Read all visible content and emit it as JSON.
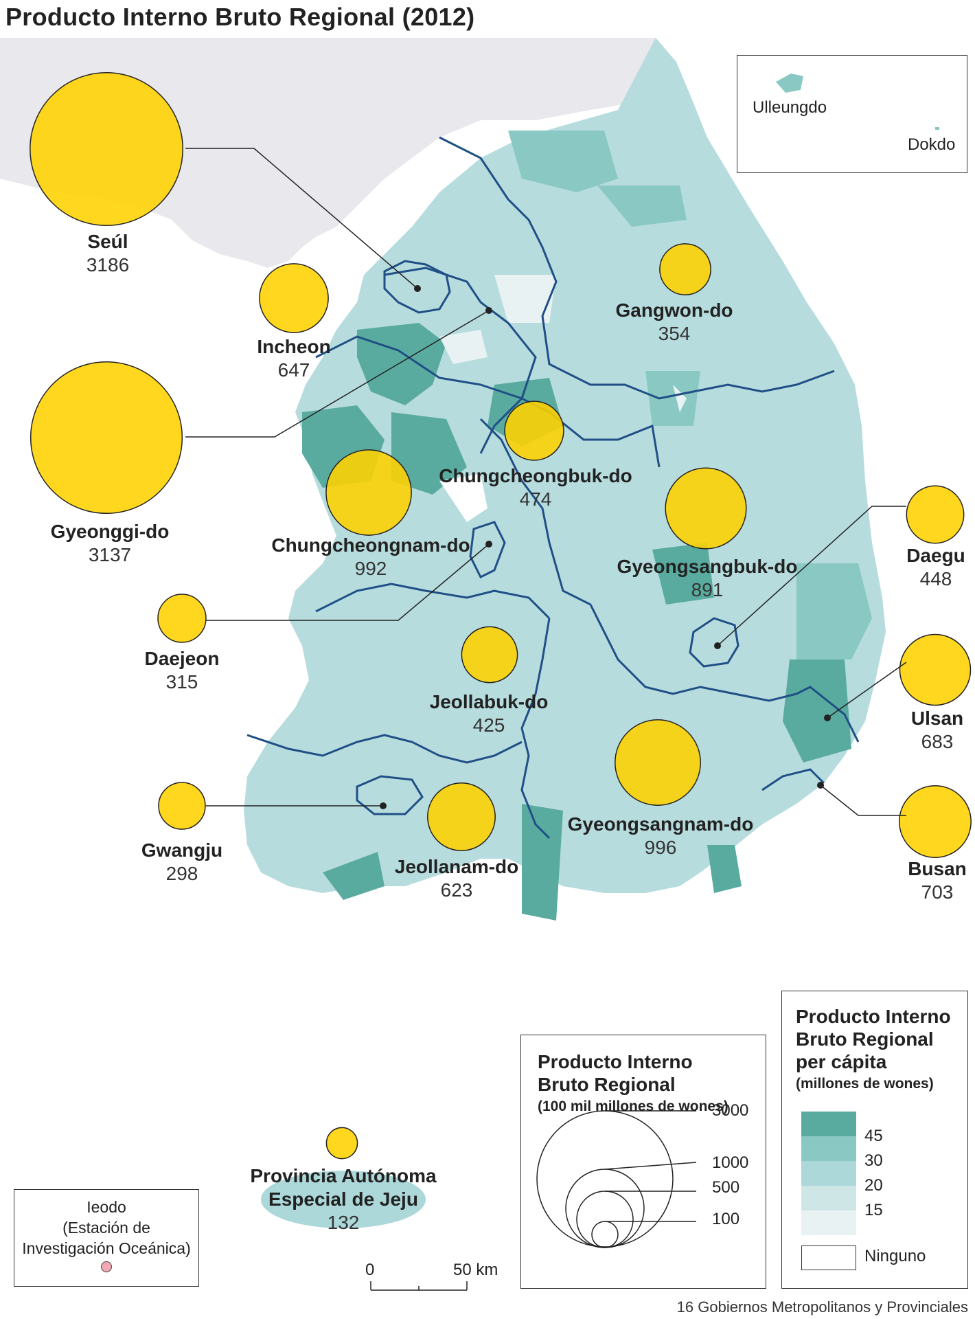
{
  "title": "Producto Interno Bruto Regional (2012)",
  "regions": {
    "seoul": {
      "name": "Seúl",
      "value": "3186"
    },
    "incheon": {
      "name": "Incheon",
      "value": "647"
    },
    "gyeonggi": {
      "name": "Gyeonggi-do",
      "value": "3137"
    },
    "gangwon": {
      "name": "Gangwon-do",
      "value": "354"
    },
    "chungbuk": {
      "name": "Chungcheongbuk-do",
      "value": "474"
    },
    "chungnam": {
      "name": "Chungcheongnam-do",
      "value": "992"
    },
    "gyeongbuk": {
      "name": "Gyeongsangbuk-do",
      "value": "891"
    },
    "daegu": {
      "name": "Daegu",
      "value": "448"
    },
    "daejeon": {
      "name": "Daejeon",
      "value": "315"
    },
    "jeonbuk": {
      "name": "Jeollabuk-do",
      "value": "425"
    },
    "ulsan": {
      "name": "Ulsan",
      "value": "683"
    },
    "gwangju": {
      "name": "Gwangju",
      "value": "298"
    },
    "jeonnam": {
      "name": "Jeollanam-do",
      "value": "623"
    },
    "gyeongnam": {
      "name": "Gyeongsangnam-do",
      "value": "996"
    },
    "busan": {
      "name": "Busan",
      "value": "703"
    },
    "jeju": {
      "name_line1": "Provincia Autónoma",
      "name_line2": "Especial de Jeju",
      "value": "132"
    }
  },
  "islands_inset": {
    "ulleungdo": "Ulleungdo",
    "dokdo": "Dokdo"
  },
  "ieodo_inset": {
    "line1": "Ieodo",
    "line2": "(Estación de",
    "line3": "Investigación Oceánica)"
  },
  "scale_bar": {
    "zero": "0",
    "fifty": "50 km"
  },
  "size_legend": {
    "title_line1": "Producto Interno",
    "title_line2": "Bruto Regional",
    "subtitle": "(100 mil millones de wones)",
    "values": [
      "3000",
      "1000",
      "500",
      "100"
    ]
  },
  "color_legend": {
    "title_line1": "Producto Interno",
    "title_line2": "Bruto Regional",
    "title_line3": "per cápita",
    "subtitle": "(millones de wones)",
    "classes": [
      {
        "label": "45",
        "color": "#5aab9f"
      },
      {
        "label": "30",
        "color": "#8ac8c4"
      },
      {
        "label": "20",
        "color": "#acd8da"
      },
      {
        "label": "15",
        "color": "#cfe6e7"
      },
      {
        "label": "",
        "color": "#e8f2f2"
      }
    ],
    "none_label": "Ninguno"
  },
  "footer": "16 Gobiernos Metropolitanos y Provinciales",
  "colors": {
    "bubble": "#ffd200",
    "north": "#e9e8ec",
    "boundary": "#1f4f86"
  }
}
